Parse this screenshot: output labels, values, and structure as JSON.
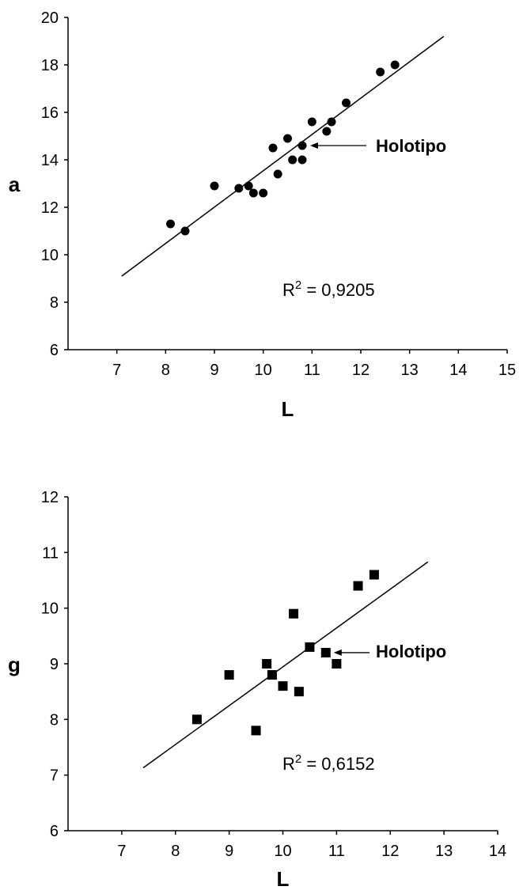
{
  "chart_data": [
    {
      "type": "scatter",
      "marker": "circle",
      "xlabel": "L",
      "ylabel": "a",
      "xlim": [
        6,
        15
      ],
      "ylim": [
        6,
        20
      ],
      "xticks": [
        7,
        8,
        9,
        10,
        11,
        12,
        13,
        14,
        15
      ],
      "yticks": [
        6,
        8,
        10,
        12,
        14,
        16,
        18,
        20
      ],
      "points": [
        {
          "x": 8.1,
          "y": 11.3
        },
        {
          "x": 8.4,
          "y": 11.0
        },
        {
          "x": 9.0,
          "y": 12.9
        },
        {
          "x": 9.5,
          "y": 12.8
        },
        {
          "x": 9.7,
          "y": 12.9
        },
        {
          "x": 9.8,
          "y": 12.6
        },
        {
          "x": 10.0,
          "y": 12.6
        },
        {
          "x": 10.2,
          "y": 14.5
        },
        {
          "x": 10.3,
          "y": 13.4
        },
        {
          "x": 10.5,
          "y": 14.9
        },
        {
          "x": 10.6,
          "y": 14.0
        },
        {
          "x": 10.8,
          "y": 14.6
        },
        {
          "x": 10.8,
          "y": 14.0
        },
        {
          "x": 11.0,
          "y": 15.6
        },
        {
          "x": 11.3,
          "y": 15.2
        },
        {
          "x": 11.4,
          "y": 15.6
        },
        {
          "x": 11.7,
          "y": 16.4
        },
        {
          "x": 12.4,
          "y": 17.7
        },
        {
          "x": 12.7,
          "y": 18.0
        }
      ],
      "trendline": {
        "x1": 7.1,
        "y1": 9.1,
        "x2": 13.7,
        "y2": 19.2
      },
      "annotation": {
        "text": "Holotipo",
        "point": {
          "x": 10.8,
          "y": 14.6
        }
      },
      "r2_prefix": "R",
      "r2_exp": "2",
      "r2_value": " = 0,9205"
    },
    {
      "type": "scatter",
      "marker": "square",
      "xlabel": "L",
      "ylabel": "g",
      "xlim": [
        6,
        14
      ],
      "ylim": [
        6,
        12
      ],
      "xticks": [
        7,
        8,
        9,
        10,
        11,
        12,
        13,
        14
      ],
      "yticks": [
        6,
        7,
        8,
        9,
        10,
        11,
        12
      ],
      "points": [
        {
          "x": 8.4,
          "y": 8.0
        },
        {
          "x": 9.0,
          "y": 8.8
        },
        {
          "x": 9.5,
          "y": 7.8
        },
        {
          "x": 9.7,
          "y": 9.0
        },
        {
          "x": 9.8,
          "y": 8.8
        },
        {
          "x": 10.0,
          "y": 8.6
        },
        {
          "x": 10.2,
          "y": 9.9
        },
        {
          "x": 10.3,
          "y": 8.5
        },
        {
          "x": 10.5,
          "y": 9.3
        },
        {
          "x": 10.8,
          "y": 9.2
        },
        {
          "x": 11.0,
          "y": 9.0
        },
        {
          "x": 11.4,
          "y": 10.4
        },
        {
          "x": 11.7,
          "y": 10.6
        }
      ],
      "trendline": {
        "x1": 7.4,
        "y1": 7.13,
        "x2": 12.7,
        "y2": 10.83
      },
      "annotation": {
        "text": "Holotipo",
        "point": {
          "x": 10.8,
          "y": 9.2
        }
      },
      "r2_prefix": "R",
      "r2_exp": "2",
      "r2_value": " = 0,6152"
    }
  ]
}
